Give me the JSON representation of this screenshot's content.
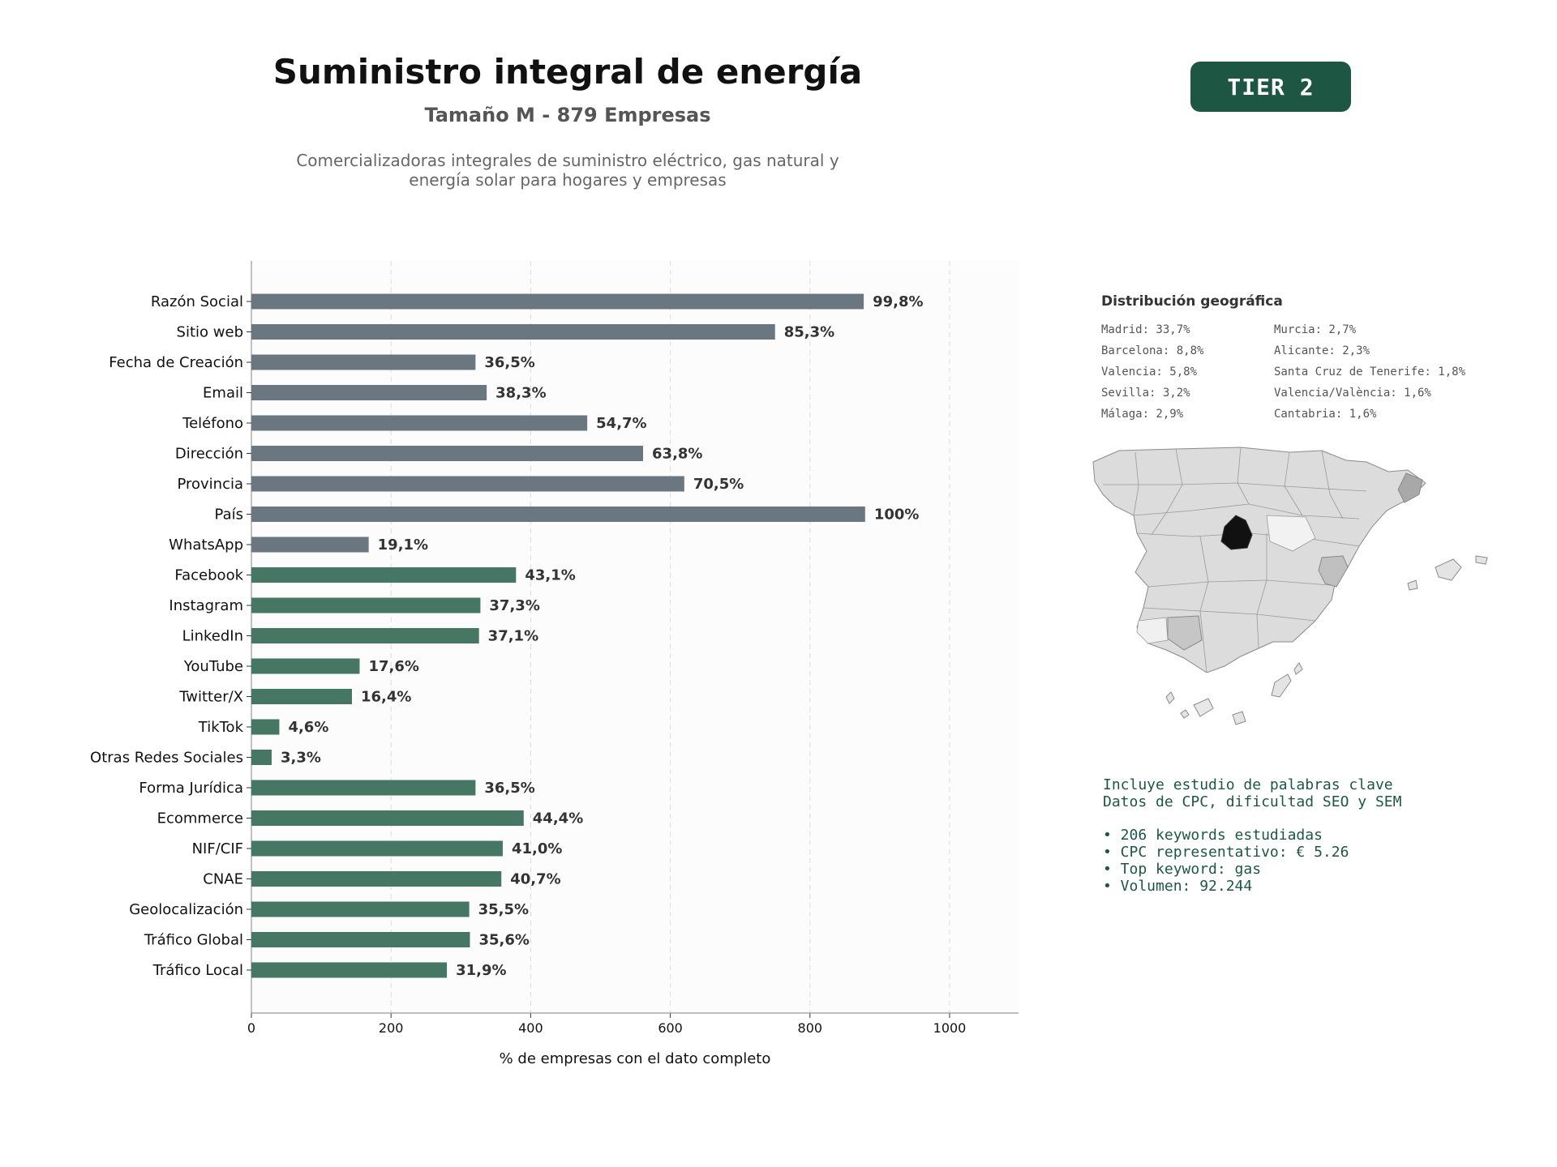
{
  "header": {
    "title": "Suministro integral de energía",
    "subtitle": "Tamaño M - 879 Empresas",
    "description_lines": [
      "Comercializadoras integrales de suministro eléctrico, gas natural y",
      "energía solar para hogares y empresas"
    ],
    "tier_badge": "TIER 2"
  },
  "colors": {
    "bar_primary": "#6b7780",
    "bar_secondary": "#467764",
    "badge_bg": "#1d5744",
    "keyword_text": "#1d5744"
  },
  "chart_data": {
    "type": "bar",
    "orientation": "horizontal",
    "xlabel": "% de empresas con el dato completo",
    "xlim": [
      0,
      1100
    ],
    "xticks": [
      0,
      200,
      400,
      600,
      800,
      1000
    ],
    "grid": true,
    "categories": [
      "Razón Social",
      "Sitio web",
      "Fecha de Creación",
      "Email",
      "Teléfono",
      "Dirección",
      "Provincia",
      "País",
      "WhatsApp",
      "Facebook",
      "Instagram",
      "LinkedIn",
      "YouTube",
      "Twitter/X",
      "TikTok",
      "Otras Redes Sociales",
      "Forma Jurídica",
      "Ecommerce",
      "NIF/CIF",
      "CNAE",
      "Geolocalización",
      "Tráfico Global",
      "Tráfico Local"
    ],
    "values": [
      877,
      750,
      321,
      337,
      481,
      561,
      620,
      879,
      168,
      379,
      328,
      326,
      155,
      144,
      40,
      29,
      321,
      390,
      360,
      358,
      312,
      313,
      280
    ],
    "labels": [
      "99,8%",
      "85,3%",
      "36,5%",
      "38,3%",
      "54,7%",
      "63,8%",
      "70,5%",
      "100%",
      "19,1%",
      "43,1%",
      "37,3%",
      "37,1%",
      "17,6%",
      "16,4%",
      "4,6%",
      "3,3%",
      "36,5%",
      "44,4%",
      "41,0%",
      "40,7%",
      "35,5%",
      "35,6%",
      "31,9%"
    ],
    "groups": [
      "primary",
      "primary",
      "primary",
      "primary",
      "primary",
      "primary",
      "primary",
      "primary",
      "primary",
      "secondary",
      "secondary",
      "secondary",
      "secondary",
      "secondary",
      "secondary",
      "secondary",
      "secondary",
      "secondary",
      "secondary",
      "secondary",
      "secondary",
      "secondary",
      "secondary"
    ]
  },
  "geo": {
    "title": "Distribución geográfica",
    "column_left": [
      "Madrid: 33,7%",
      "Barcelona: 8,8%",
      "Valencia: 5,8%",
      "Sevilla: 3,2%",
      "Málaga: 2,9%"
    ],
    "column_right": [
      "Murcia: 2,7%",
      "Alicante: 2,3%",
      "Santa Cruz de Tenerife: 1,8%",
      "Valencia/València: 1,6%",
      "Cantabria: 1,6%"
    ]
  },
  "keywords": {
    "line1": "Incluye estudio de palabras clave",
    "line2": "Datos de CPC, dificultad SEO y SEM",
    "bullets": [
      "• 206 keywords estudiadas",
      "• CPC representativo: € 5.26",
      "• Top keyword: gas",
      "• Volumen: 92.244"
    ]
  }
}
